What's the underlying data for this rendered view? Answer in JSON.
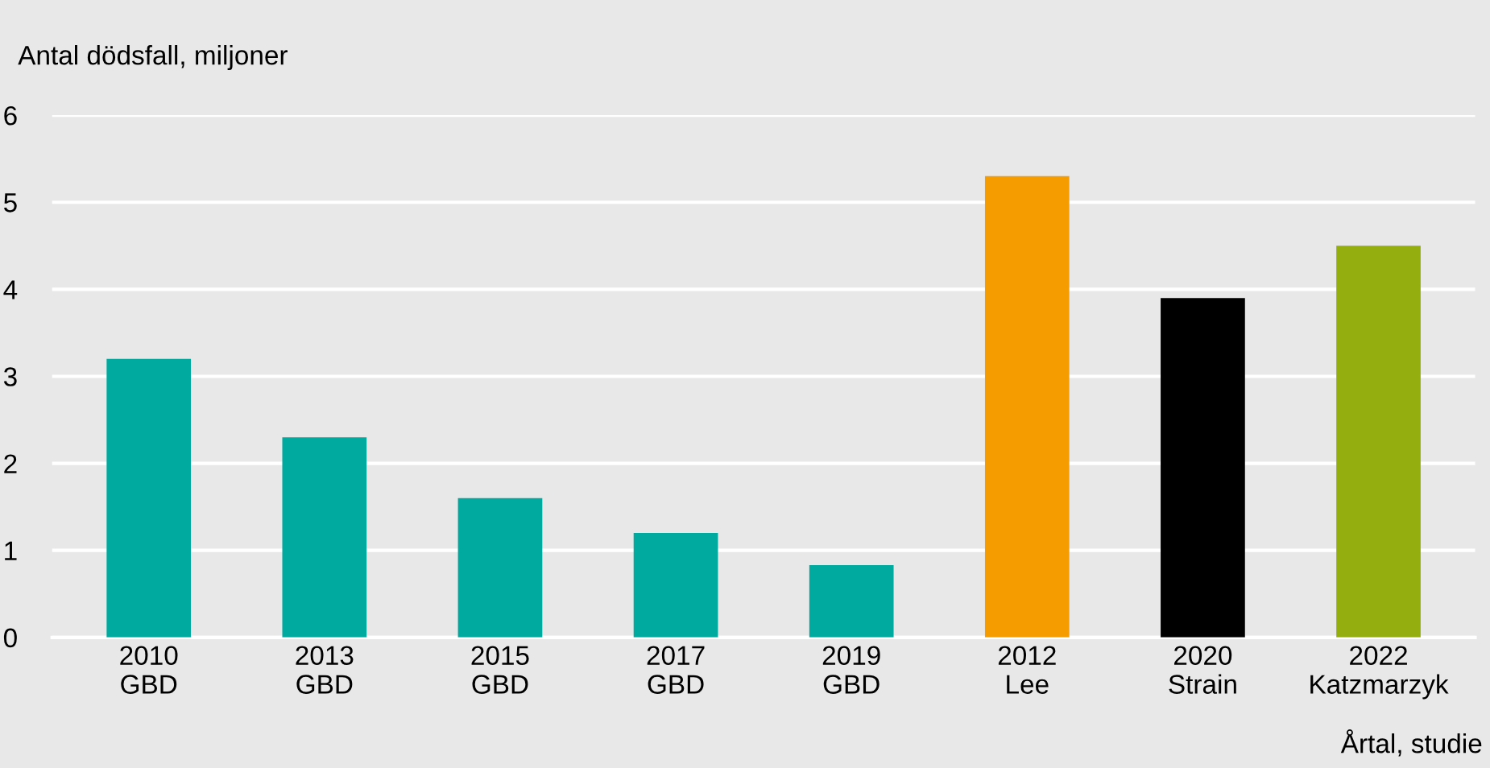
{
  "chart_data": {
    "type": "bar",
    "ylabel": "Antal dödsfall, miljoner",
    "xlabel": "Årtal, studie",
    "categories": [
      "2010\nGBD",
      "2013\nGBD",
      "2015\nGBD",
      "2017\nGBD",
      "2019\nGBD",
      "2012\nLee",
      "2020\nStrain",
      "2022\nKatzmarzyk"
    ],
    "values": [
      3.2,
      2.3,
      1.6,
      1.2,
      0.83,
      5.3,
      3.9,
      4.5
    ],
    "colors": [
      "#00aa9f",
      "#00aa9f",
      "#00aa9f",
      "#00aa9f",
      "#00aa9f",
      "#f49c00",
      "#000000",
      "#94ad0f"
    ],
    "ylim": [
      0,
      6
    ],
    "yticks": [
      0,
      1,
      2,
      3,
      4,
      5,
      6
    ],
    "grid": "y"
  }
}
